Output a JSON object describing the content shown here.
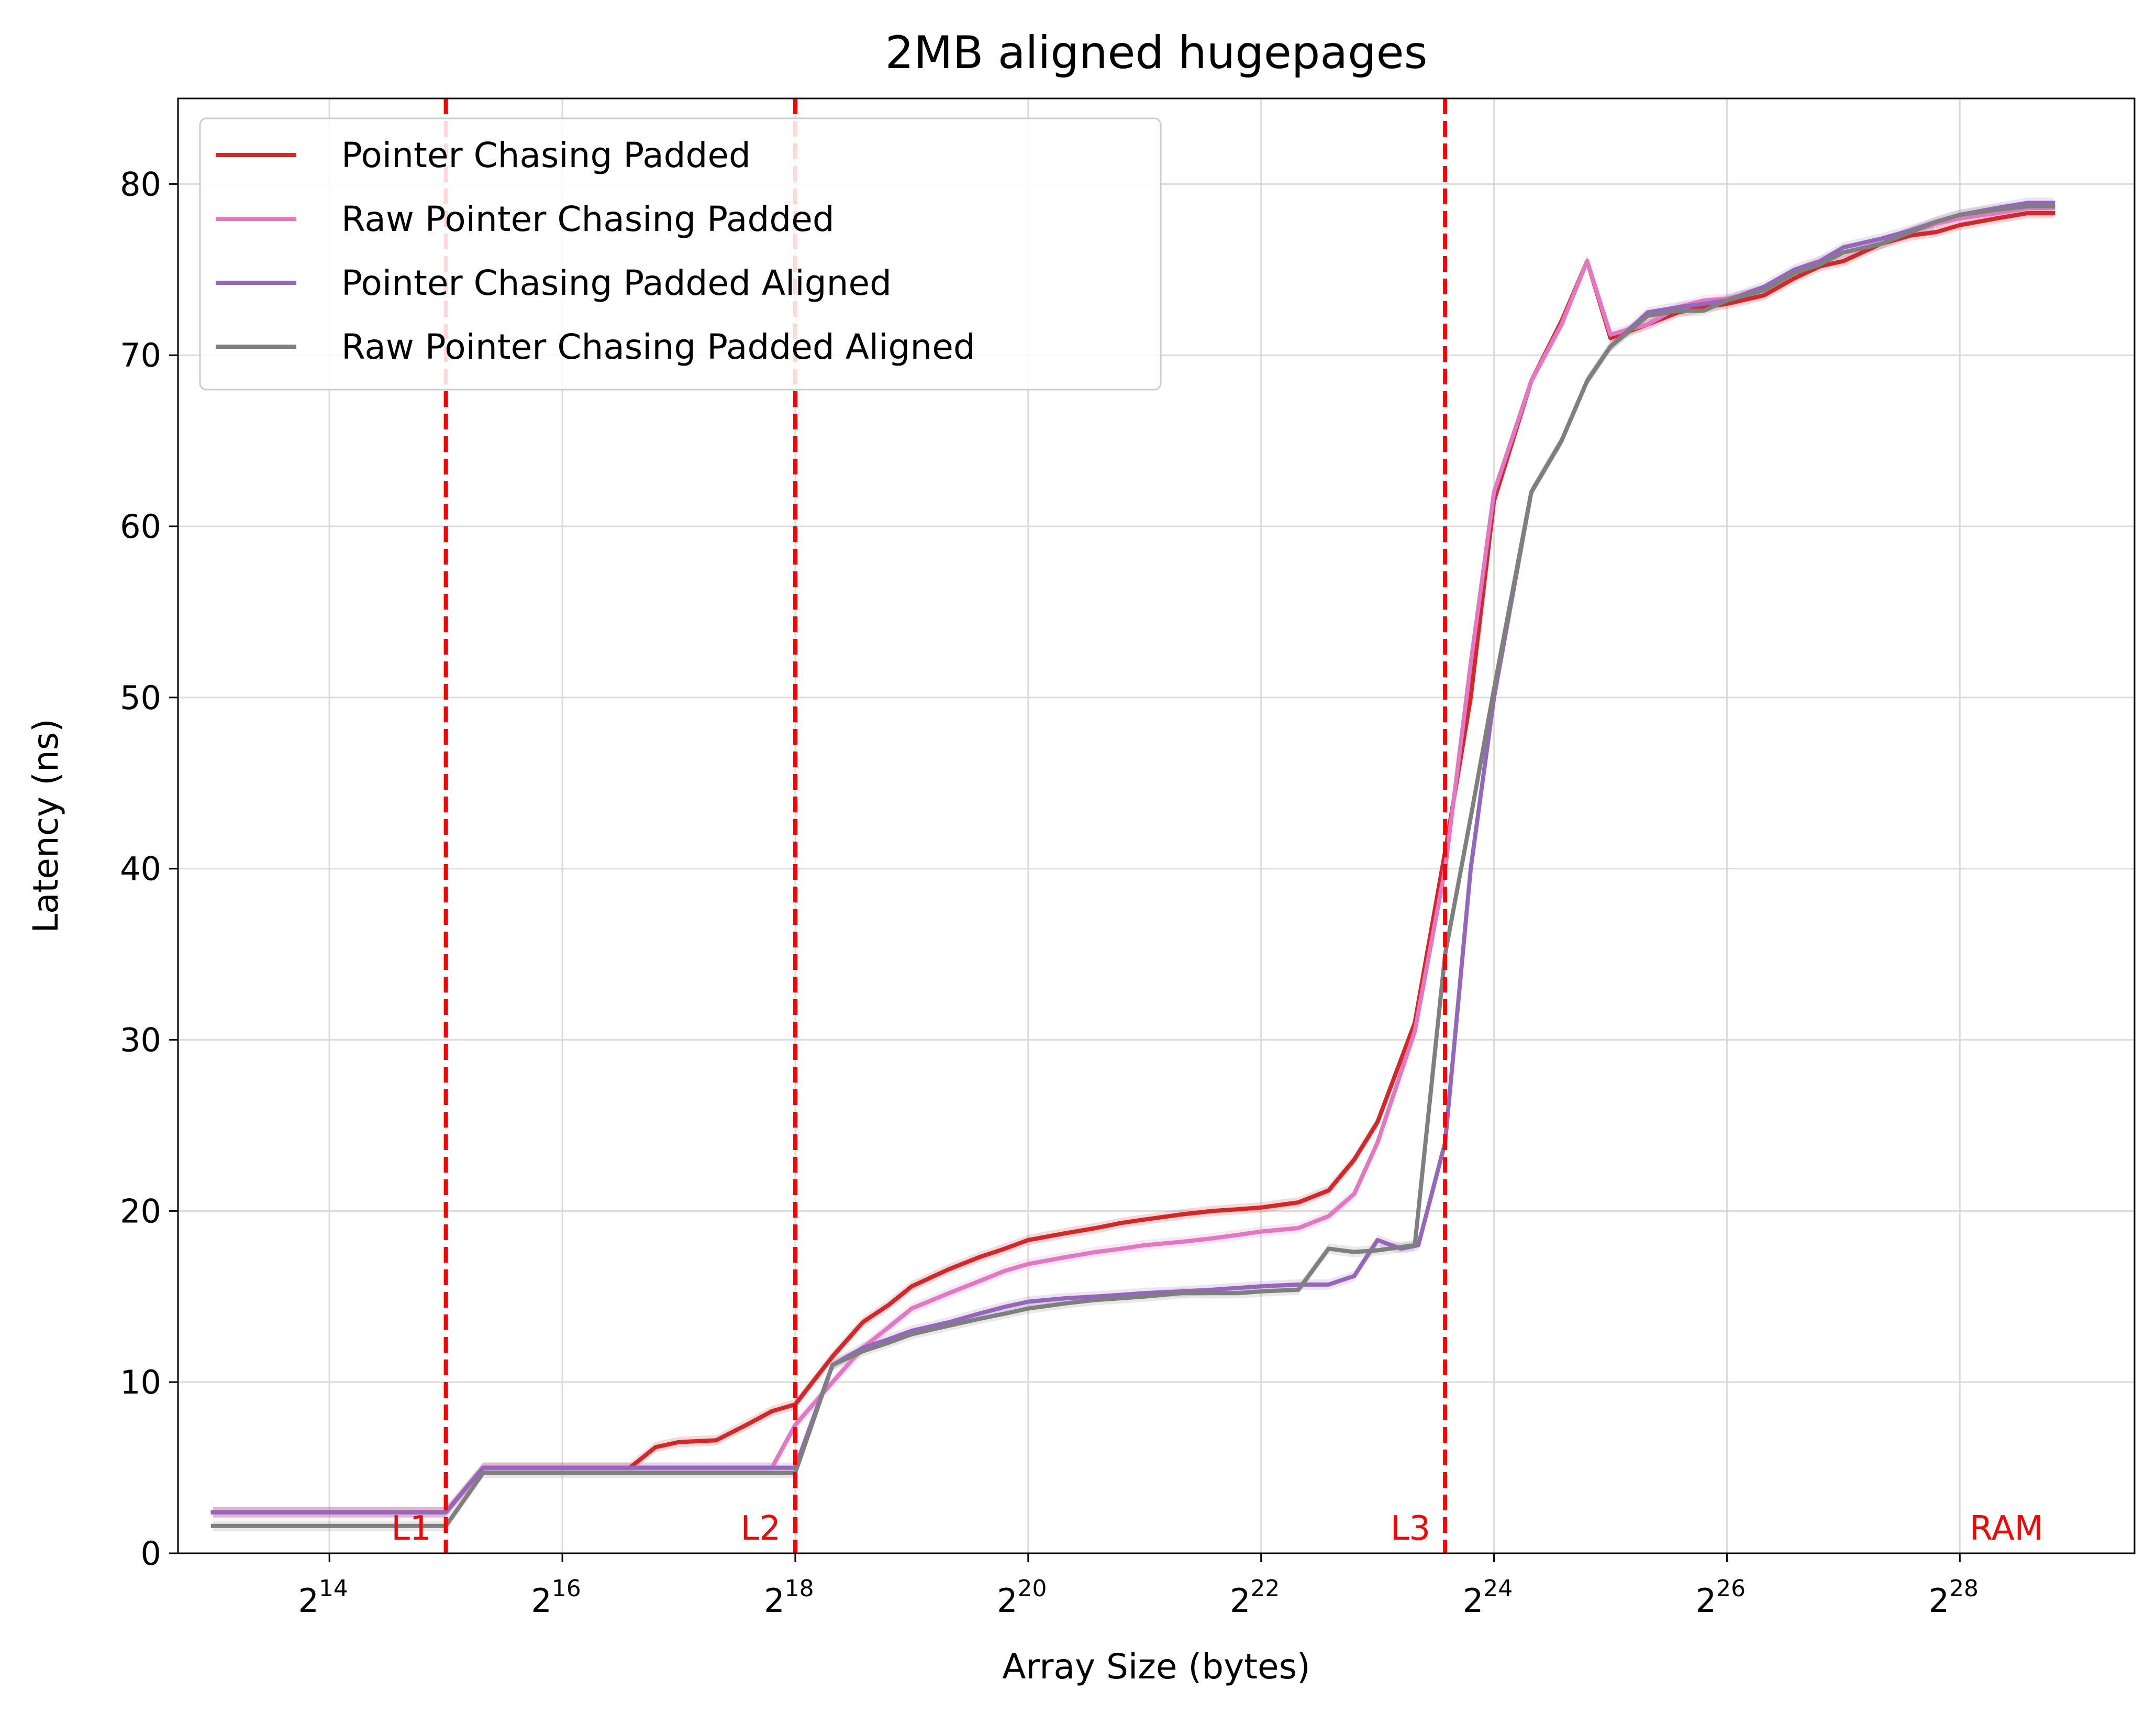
{
  "chart_data": {
    "type": "line",
    "title": "2MB aligned hugepages",
    "xlabel": "Array Size (bytes)",
    "ylabel": "Latency (ns)",
    "x_scale": "log2",
    "xlim_log2": [
      12.7,
      29.5
    ],
    "ylim": [
      0,
      85
    ],
    "x_ticks": [
      {
        "exp": 14,
        "base": "2",
        "sup": "14"
      },
      {
        "exp": 16,
        "base": "2",
        "sup": "16"
      },
      {
        "exp": 18,
        "base": "2",
        "sup": "18"
      },
      {
        "exp": 20,
        "base": "2",
        "sup": "20"
      },
      {
        "exp": 22,
        "base": "2",
        "sup": "22"
      },
      {
        "exp": 24,
        "base": "2",
        "sup": "24"
      },
      {
        "exp": 26,
        "base": "2",
        "sup": "26"
      },
      {
        "exp": 28,
        "base": "2",
        "sup": "28"
      }
    ],
    "y_ticks": [
      0,
      10,
      20,
      30,
      40,
      50,
      60,
      70,
      80
    ],
    "grid": true,
    "legend_position": "top-left",
    "cache_lines": [
      {
        "label": "L1",
        "x_log2": 15.0,
        "color": "#ff0000"
      },
      {
        "label": "L2",
        "x_log2": 18.0,
        "color": "#ff0000"
      },
      {
        "label": "L3",
        "x_log2": 23.58,
        "color": "#ff0000"
      }
    ],
    "region_labels": [
      {
        "label": "RAM",
        "x_log2": 28.4,
        "color": "#ff0000"
      }
    ],
    "series": [
      {
        "name": "Pointer Chasing Padded",
        "color": "#d62728",
        "x_log2": [
          13,
          13.5,
          14,
          14.5,
          15,
          15.32,
          15.58,
          15.8,
          16,
          16.32,
          16.58,
          16.8,
          17,
          17.32,
          17.58,
          17.8,
          18,
          18.32,
          18.58,
          18.8,
          19,
          19.32,
          19.58,
          19.8,
          20,
          20.32,
          20.58,
          20.8,
          21,
          21.32,
          21.58,
          21.8,
          22,
          22.32,
          22.58,
          22.8,
          23,
          23.32,
          23.58,
          23.8,
          24,
          24.32,
          24.58,
          24.8,
          25,
          25.32,
          25.58,
          25.8,
          26,
          26.32,
          26.58,
          26.8,
          27,
          27.32,
          27.58,
          27.8,
          28,
          28.32,
          28.58,
          28.8
        ],
        "y": [
          2.4,
          2.4,
          2.4,
          2.4,
          2.4,
          5.0,
          5.0,
          5.0,
          5.0,
          5.0,
          5.0,
          6.2,
          6.5,
          6.6,
          7.5,
          8.3,
          8.7,
          11.5,
          13.5,
          14.5,
          15.6,
          16.6,
          17.3,
          17.8,
          18.3,
          18.7,
          19.0,
          19.3,
          19.5,
          19.8,
          20.0,
          20.1,
          20.2,
          20.5,
          21.2,
          23.0,
          25.2,
          31.0,
          41.0,
          50.0,
          61.5,
          68.5,
          72.0,
          75.5,
          71.0,
          71.8,
          72.5,
          72.8,
          73.0,
          73.5,
          74.5,
          75.2,
          75.5,
          76.5,
          77.0,
          77.2,
          77.6,
          78.0,
          78.3,
          78.3
        ]
      },
      {
        "name": "Raw Pointer Chasing Padded",
        "color": "#e377c2",
        "x_log2": [
          13,
          13.5,
          14,
          14.5,
          15,
          15.32,
          15.58,
          15.8,
          16,
          16.32,
          16.58,
          16.8,
          17,
          17.32,
          17.58,
          17.8,
          18,
          18.32,
          18.58,
          18.8,
          19,
          19.32,
          19.58,
          19.8,
          20,
          20.32,
          20.58,
          20.8,
          21,
          21.32,
          21.58,
          21.8,
          22,
          22.32,
          22.58,
          22.8,
          23,
          23.32,
          23.58,
          23.8,
          24,
          24.32,
          24.58,
          24.8,
          25,
          25.32,
          25.58,
          25.8,
          26,
          26.32,
          26.58,
          26.8,
          27,
          27.32,
          27.58,
          27.8,
          28,
          28.32,
          28.58,
          28.8
        ],
        "y": [
          2.4,
          2.4,
          2.4,
          2.4,
          2.4,
          5.0,
          5.0,
          5.0,
          5.0,
          5.0,
          5.0,
          5.0,
          5.0,
          5.0,
          5.0,
          5.0,
          7.5,
          10.0,
          12.0,
          13.2,
          14.3,
          15.2,
          15.9,
          16.5,
          16.9,
          17.3,
          17.6,
          17.8,
          18.0,
          18.2,
          18.4,
          18.6,
          18.8,
          19.0,
          19.7,
          21.0,
          24.0,
          30.5,
          40.0,
          52.0,
          62.0,
          68.5,
          71.8,
          75.5,
          71.2,
          71.8,
          72.8,
          73.2,
          73.3,
          73.8,
          74.8,
          75.5,
          76.0,
          76.5,
          77.2,
          77.7,
          78.0,
          78.3,
          78.6,
          78.6
        ]
      },
      {
        "name": "Pointer Chasing Padded Aligned",
        "color": "#9467bd",
        "x_log2": [
          13,
          13.5,
          14,
          14.5,
          15,
          15.32,
          15.58,
          15.8,
          16,
          16.32,
          16.58,
          16.8,
          17,
          17.32,
          17.58,
          17.8,
          18,
          18.32,
          18.58,
          18.8,
          19,
          19.32,
          19.58,
          19.8,
          20,
          20.32,
          20.58,
          20.8,
          21,
          21.32,
          21.58,
          21.8,
          22,
          22.32,
          22.58,
          22.8,
          23,
          23.2,
          23.35,
          23.58,
          23.8,
          24,
          24.32,
          24.58,
          24.8,
          25,
          25.32,
          25.58,
          25.8,
          26,
          26.32,
          26.58,
          26.8,
          27,
          27.32,
          27.58,
          27.8,
          28,
          28.32,
          28.58,
          28.8
        ],
        "y": [
          2.4,
          2.4,
          2.4,
          2.4,
          2.4,
          5.0,
          5.0,
          5.0,
          5.0,
          5.0,
          5.0,
          5.0,
          5.0,
          5.0,
          5.0,
          5.0,
          5.0,
          11.0,
          12.0,
          12.5,
          13.0,
          13.5,
          14.0,
          14.4,
          14.7,
          14.9,
          15.0,
          15.1,
          15.2,
          15.3,
          15.4,
          15.5,
          15.6,
          15.7,
          15.7,
          16.2,
          18.3,
          17.8,
          18.0,
          24.0,
          40.0,
          50.0,
          62.0,
          65.0,
          68.5,
          70.5,
          72.5,
          72.8,
          73.0,
          73.2,
          74.0,
          75.0,
          75.5,
          76.3,
          76.8,
          77.3,
          77.8,
          78.2,
          78.6,
          78.9,
          78.9
        ]
      },
      {
        "name": "Raw Pointer Chasing Padded Aligned",
        "color": "#7f7f7f",
        "x_log2": [
          13,
          13.5,
          14,
          14.5,
          15,
          15.32,
          15.58,
          15.8,
          16,
          16.32,
          16.58,
          16.8,
          17,
          17.32,
          17.58,
          17.8,
          18,
          18.32,
          18.58,
          18.8,
          19,
          19.32,
          19.58,
          19.8,
          20,
          20.32,
          20.58,
          20.8,
          21,
          21.32,
          21.58,
          21.8,
          22,
          22.32,
          22.58,
          22.8,
          23,
          23.32,
          23.58,
          23.8,
          24,
          24.32,
          24.58,
          24.8,
          25,
          25.32,
          25.58,
          25.8,
          26,
          26.32,
          26.58,
          26.8,
          27,
          27.32,
          27.58,
          27.8,
          28,
          28.32,
          28.58,
          28.8
        ],
        "y": [
          1.6,
          1.6,
          1.6,
          1.6,
          1.6,
          4.7,
          4.7,
          4.7,
          4.7,
          4.7,
          4.7,
          4.7,
          4.7,
          4.7,
          4.7,
          4.7,
          4.7,
          11.0,
          11.8,
          12.3,
          12.8,
          13.3,
          13.7,
          14.0,
          14.3,
          14.6,
          14.8,
          14.9,
          15.0,
          15.2,
          15.2,
          15.2,
          15.3,
          15.4,
          17.8,
          17.6,
          17.7,
          18.0,
          35.0,
          43.0,
          50.5,
          62.0,
          65.0,
          68.5,
          70.5,
          72.3,
          72.6,
          72.6,
          73.2,
          73.8,
          74.8,
          75.3,
          76.0,
          76.5,
          77.2,
          77.8,
          78.2,
          78.5,
          78.7,
          78.7
        ]
      }
    ]
  }
}
